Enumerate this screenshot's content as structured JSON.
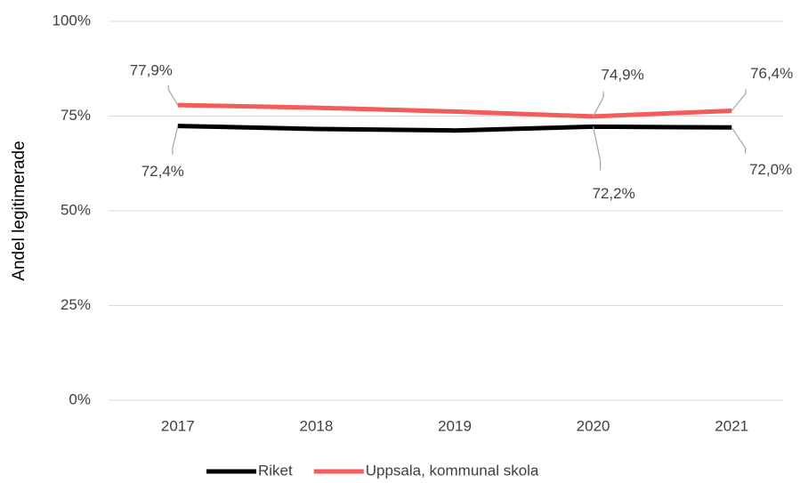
{
  "chart_data": {
    "type": "line",
    "y_label": "Andel legitimerade",
    "categories": [
      "2017",
      "2018",
      "2019",
      "2020",
      "2021"
    ],
    "series": [
      {
        "name": "Riket",
        "color": "#000000",
        "values": [
          72.4,
          71.6,
          71.2,
          72.2,
          72.0
        ],
        "value_labels": [
          "72,4%",
          null,
          null,
          "72,2%",
          "72,0%"
        ]
      },
      {
        "name": "Uppsala, kommunal skola",
        "color": "#f45b5b",
        "values": [
          77.9,
          77.2,
          76.2,
          74.9,
          76.4
        ],
        "value_labels": [
          "77,9%",
          null,
          null,
          "74,9%",
          "76,4%"
        ]
      }
    ],
    "ylim": [
      0,
      100
    ],
    "yticks": [
      {
        "value": 0,
        "label": "0%"
      },
      {
        "value": 25,
        "label": "25%"
      },
      {
        "value": 50,
        "label": "50%"
      },
      {
        "value": 75,
        "label": "75%"
      },
      {
        "value": 100,
        "label": "100%"
      }
    ],
    "grid": true,
    "legend": "bottom"
  }
}
